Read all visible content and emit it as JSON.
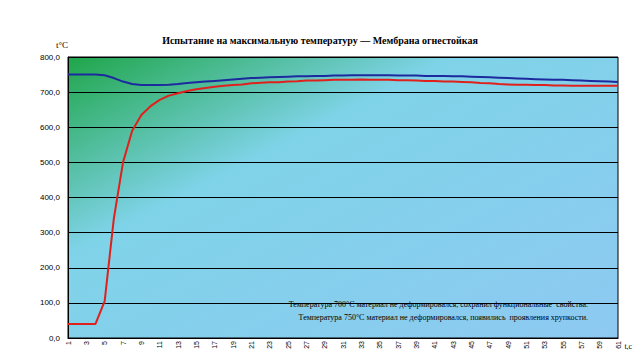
{
  "chart_data": {
    "type": "line",
    "title": "Испытание на максимальную температуру — Мембрана огнестойкая",
    "y_label": "t°C",
    "x_label": "t,c",
    "annotations": [
      "Температура 700°С материал не деформировался, сохранил функциональные  свойства.",
      "Температура 750°С материал не деформировался, появились  проявления хрупкости."
    ],
    "categories": [
      "1",
      null,
      "3",
      null,
      "5",
      null,
      "7",
      null,
      "9",
      null,
      "11",
      null,
      "13",
      null,
      "15",
      null,
      "17",
      null,
      "19",
      null,
      "21",
      null,
      "23",
      null,
      "25",
      null,
      "27",
      null,
      "29",
      null,
      "31",
      null,
      "33",
      null,
      "35",
      null,
      "37",
      null,
      "39",
      null,
      "41",
      null,
      "43",
      null,
      "45",
      null,
      "47",
      null,
      "49",
      null,
      "51",
      null,
      "53",
      null,
      "55",
      null,
      "57",
      null,
      "59",
      null,
      "61"
    ],
    "series": [
      {
        "color": "#1c2a9e",
        "values": [
          750,
          750,
          750,
          750,
          748,
          740,
          730,
          723,
          720,
          720,
          720,
          721,
          723,
          726,
          728,
          730,
          732,
          734,
          736,
          738,
          740,
          741,
          742,
          743,
          744,
          745,
          745,
          746,
          746,
          747,
          747,
          748,
          748,
          748,
          748,
          748,
          747,
          747,
          747,
          746,
          746,
          746,
          745,
          745,
          744,
          743,
          742,
          741,
          740,
          739,
          738,
          737,
          736,
          735,
          735,
          734,
          733,
          732,
          731,
          730,
          729
        ]
      },
      {
        "color": "#e0201c",
        "values": [
          40,
          40,
          40,
          40,
          105,
          340,
          500,
          590,
          635,
          660,
          678,
          690,
          697,
          703,
          708,
          712,
          715,
          718,
          720,
          722,
          725,
          727,
          728,
          728,
          730,
          731,
          733,
          733,
          734,
          735,
          735,
          735,
          736,
          735,
          735,
          735,
          734,
          734,
          733,
          732,
          732,
          730,
          730,
          729,
          728,
          726,
          725,
          723,
          722,
          721,
          721,
          720,
          720,
          719,
          719,
          718,
          718,
          718,
          718,
          718,
          718
        ]
      }
    ],
    "ylim": [
      0,
      800
    ],
    "yticks": [
      {
        "value": 0,
        "label": "0,0"
      },
      {
        "value": 100,
        "label": "100,0"
      },
      {
        "value": 200,
        "label": "200,0"
      },
      {
        "value": 300,
        "label": "300,0"
      },
      {
        "value": 400,
        "label": "400,0"
      },
      {
        "value": 500,
        "label": "500,0"
      },
      {
        "value": 600,
        "label": "600,0"
      },
      {
        "value": 700,
        "label": "700,0"
      },
      {
        "value": 800,
        "label": "800,0"
      }
    ],
    "grid": true,
    "tick_labels": true
  }
}
